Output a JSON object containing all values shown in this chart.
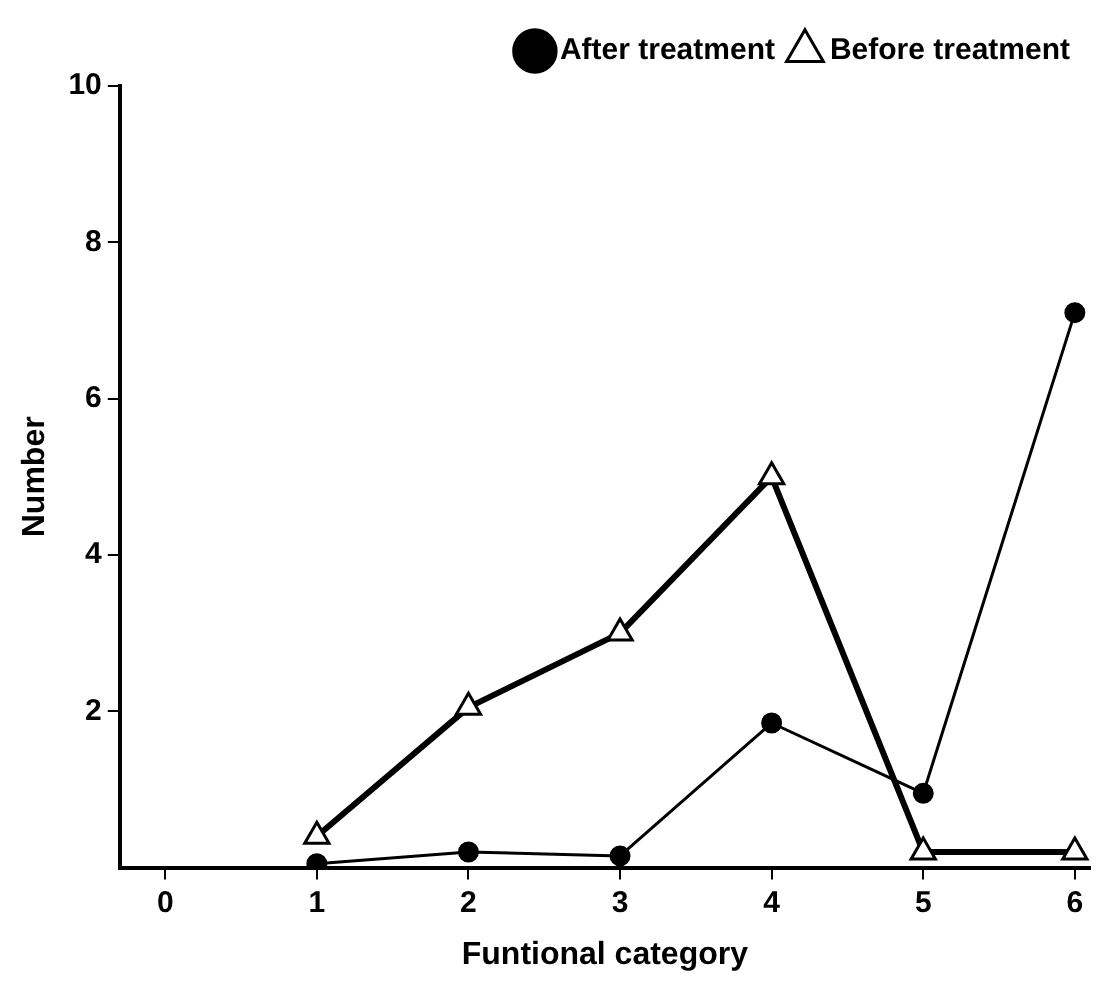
{
  "chart_data": {
    "type": "line",
    "xlabel": "Funtional category",
    "ylabel": "Number",
    "x": [
      1,
      2,
      3,
      4,
      5,
      6
    ],
    "series": [
      {
        "name": "Before treatment",
        "color": "#000000",
        "marker": "triangle",
        "values": [
          0.4,
          2.05,
          3.0,
          5.0,
          0.2,
          0.2
        ]
      },
      {
        "name": "After treatment",
        "color": "#000000",
        "marker": "circle",
        "values": [
          0.05,
          0.2,
          0.15,
          1.85,
          0.95,
          7.1
        ]
      }
    ],
    "xlim": [
      -0.3,
      6.1
    ],
    "xticks": [
      0,
      1,
      2,
      3,
      4,
      5,
      6
    ],
    "ylim": [
      0,
      10
    ],
    "yticks": [
      2,
      4,
      6,
      8,
      10
    ],
    "grid": false,
    "legend": "top right",
    "line_style": "solid"
  }
}
